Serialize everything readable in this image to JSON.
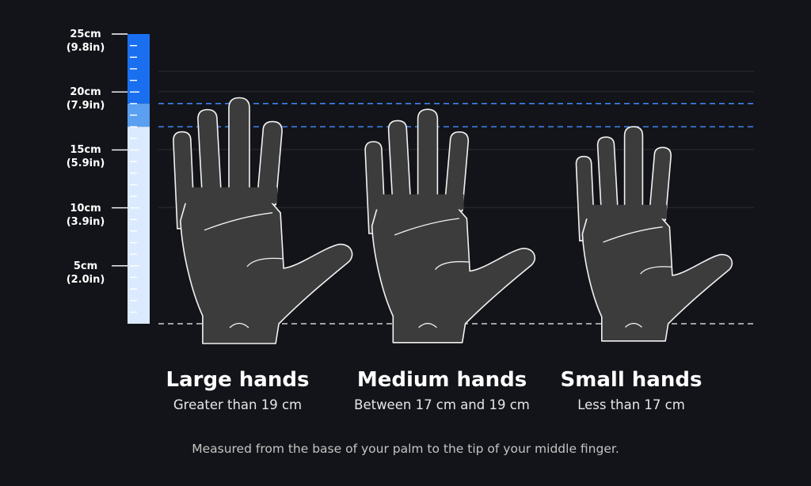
{
  "ruler": {
    "marks": [
      {
        "cm": 25,
        "cm_label": "25cm",
        "in_label": "(9.8in)"
      },
      {
        "cm": 20,
        "cm_label": "20cm",
        "in_label": "(7.9in)"
      },
      {
        "cm": 15,
        "cm_label": "15cm",
        "in_label": "(5.9in)"
      },
      {
        "cm": 10,
        "cm_label": "10cm",
        "in_label": "(3.9in)"
      },
      {
        "cm": 5,
        "cm_label": "5cm",
        "in_label": "(2.0in)"
      }
    ],
    "max_cm": 25,
    "bands": [
      {
        "from_cm": 19,
        "to_cm": 25,
        "color": "#1a6ff0"
      },
      {
        "from_cm": 17,
        "to_cm": 19,
        "color": "#5a9ff0"
      },
      {
        "from_cm": 0,
        "to_cm": 17,
        "color": "#dbeafe"
      }
    ],
    "threshold_line_color": "#3d82f0",
    "baseline_color": "#d0d0d0"
  },
  "categories": [
    {
      "id": "large",
      "title": "Large hands",
      "subtitle": "Greater than 19 cm",
      "hand_cm": 19.5
    },
    {
      "id": "medium",
      "title": "Medium hands",
      "subtitle": "Between 17 cm and 19 cm",
      "hand_cm": 18.5
    },
    {
      "id": "small",
      "title": "Small hands",
      "subtitle": "Less than 17 cm",
      "hand_cm": 17.0
    }
  ],
  "thresholds_cm": [
    19,
    17
  ],
  "footnote": "Measured from the base of your palm to the tip of your middle finger.",
  "colors": {
    "background": "#131419",
    "hand_fill": "#3c3c3c",
    "hand_stroke": "#f2f2f2",
    "grid": "#2c2d33"
  }
}
